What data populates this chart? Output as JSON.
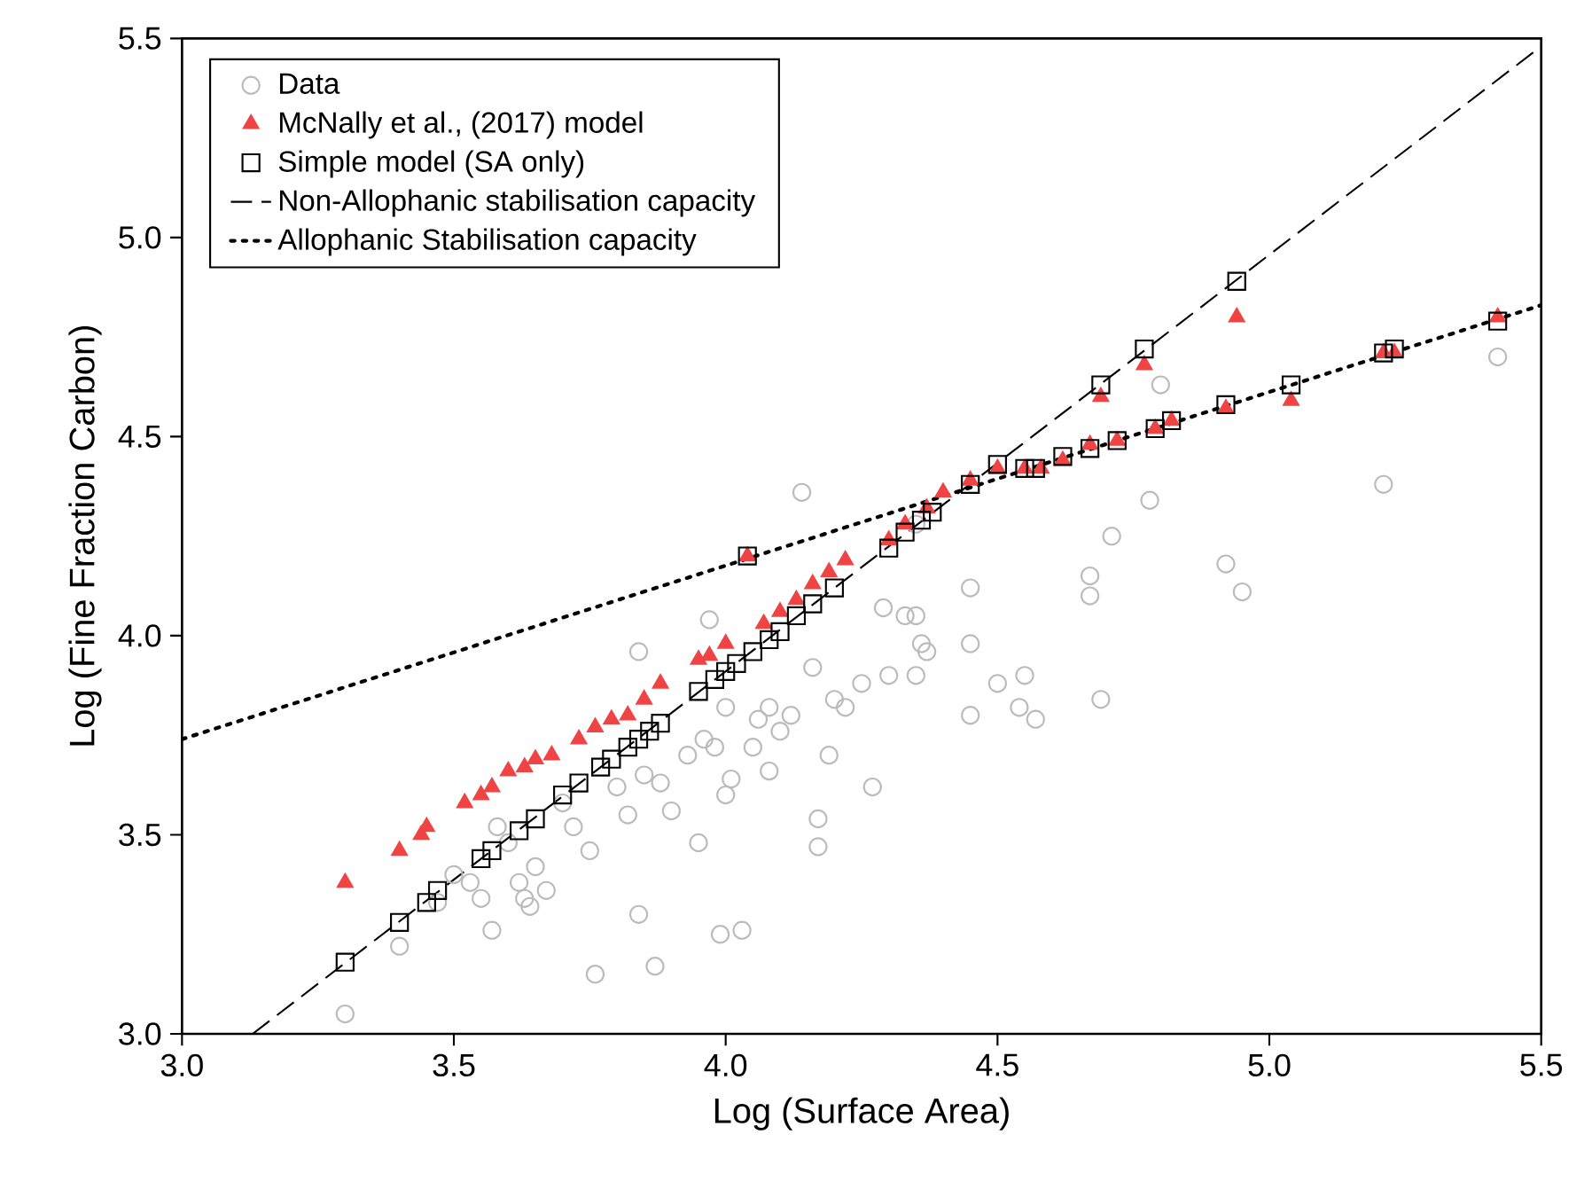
{
  "chart_data": {
    "type": "scatter",
    "xlabel": "Log (Surface Area)",
    "ylabel": "Log (Fine Fraction Carbon)",
    "xlim": [
      3.0,
      5.5
    ],
    "ylim": [
      3.0,
      5.5
    ],
    "xticks": [
      {
        "value": 3.0,
        "label": "3.0"
      },
      {
        "value": 3.5,
        "label": "3.5"
      },
      {
        "value": 4.0,
        "label": "4.0"
      },
      {
        "value": 4.5,
        "label": "4.5"
      },
      {
        "value": 5.0,
        "label": "5.0"
      },
      {
        "value": 5.5,
        "label": "5.5"
      }
    ],
    "yticks": [
      {
        "value": 3.0,
        "label": "3.0"
      },
      {
        "value": 3.5,
        "label": "3.5"
      },
      {
        "value": 4.0,
        "label": "4.0"
      },
      {
        "value": 4.5,
        "label": "4.5"
      },
      {
        "value": 5.0,
        "label": "5.0"
      },
      {
        "value": 5.5,
        "label": "5.5"
      }
    ],
    "legend": "top left",
    "grid": false,
    "series": [
      {
        "name": "Data",
        "marker": "circle",
        "color": "#bbbbbb",
        "x": [
          3.3,
          3.4,
          3.47,
          3.5,
          3.53,
          3.55,
          3.57,
          3.58,
          3.6,
          3.62,
          3.63,
          3.64,
          3.65,
          3.67,
          3.7,
          3.72,
          3.75,
          3.76,
          3.8,
          3.82,
          3.84,
          3.85,
          3.87,
          3.88,
          3.84,
          3.9,
          3.93,
          3.95,
          3.96,
          3.97,
          3.98,
          3.99,
          4.0,
          4.0,
          4.01,
          4.03,
          4.05,
          4.06,
          4.08,
          4.08,
          4.1,
          4.12,
          4.14,
          4.16,
          4.17,
          4.17,
          4.19,
          4.2,
          4.22,
          4.25,
          4.27,
          4.29,
          4.3,
          4.33,
          4.35,
          4.36,
          4.37,
          4.35,
          4.45,
          4.45,
          4.5,
          4.54,
          4.55,
          4.57,
          4.67,
          4.67,
          4.69,
          4.71,
          4.78,
          4.8,
          4.92,
          4.95,
          5.21,
          5.42,
          4.45,
          4.35
        ],
        "values": [
          3.05,
          3.22,
          3.33,
          3.4,
          3.38,
          3.34,
          3.26,
          3.52,
          3.48,
          3.38,
          3.34,
          3.32,
          3.42,
          3.36,
          3.58,
          3.52,
          3.46,
          3.15,
          3.62,
          3.55,
          3.3,
          3.65,
          3.17,
          3.63,
          3.96,
          3.56,
          3.7,
          3.48,
          3.74,
          4.04,
          3.72,
          3.25,
          3.6,
          3.82,
          3.64,
          3.26,
          3.72,
          3.79,
          3.66,
          3.82,
          3.76,
          3.8,
          4.36,
          3.92,
          3.54,
          3.47,
          3.7,
          3.84,
          3.82,
          3.88,
          3.62,
          4.07,
          3.9,
          4.05,
          4.05,
          3.98,
          3.96,
          3.9,
          3.8,
          3.98,
          3.88,
          3.82,
          3.9,
          3.79,
          4.15,
          4.1,
          3.84,
          4.25,
          4.34,
          4.63,
          4.18,
          4.11,
          4.38,
          4.7,
          4.12,
          4.28
        ]
      },
      {
        "name": "McNally et al., (2017) model",
        "marker": "triangle",
        "color": "#f04444",
        "x": [
          3.3,
          3.4,
          3.44,
          3.45,
          3.52,
          3.55,
          3.57,
          3.6,
          3.63,
          3.65,
          3.68,
          3.73,
          3.76,
          3.79,
          3.82,
          3.85,
          3.88,
          3.95,
          3.97,
          4.0,
          4.04,
          4.07,
          4.1,
          4.13,
          4.16,
          4.19,
          4.22,
          4.3,
          4.33,
          4.37,
          4.4,
          4.45,
          4.5,
          4.55,
          4.58,
          4.62,
          4.67,
          4.69,
          4.72,
          4.77,
          4.79,
          4.82,
          4.92,
          4.94,
          5.04,
          5.21,
          5.23,
          5.42
        ],
        "values": [
          3.38,
          3.46,
          3.5,
          3.52,
          3.58,
          3.6,
          3.62,
          3.66,
          3.67,
          3.69,
          3.7,
          3.74,
          3.77,
          3.79,
          3.8,
          3.84,
          3.88,
          3.94,
          3.95,
          3.98,
          4.2,
          4.03,
          4.06,
          4.09,
          4.13,
          4.16,
          4.19,
          4.24,
          4.28,
          4.32,
          4.36,
          4.39,
          4.42,
          4.42,
          4.42,
          4.44,
          4.48,
          4.6,
          4.49,
          4.68,
          4.52,
          4.54,
          4.57,
          4.8,
          4.59,
          4.71,
          4.71,
          4.8
        ]
      },
      {
        "name": "Simple model (SA only)",
        "marker": "square",
        "color": "#000000",
        "x": [
          3.3,
          3.4,
          3.45,
          3.47,
          3.55,
          3.57,
          3.62,
          3.65,
          3.7,
          3.73,
          3.77,
          3.79,
          3.82,
          3.84,
          3.86,
          3.88,
          3.95,
          3.98,
          4.0,
          4.02,
          4.05,
          4.08,
          4.1,
          4.13,
          4.16,
          4.2,
          4.3,
          4.33,
          4.36,
          4.38,
          4.45,
          4.5,
          4.55,
          4.04,
          4.69,
          4.77,
          4.94,
          4.57,
          4.62,
          4.67,
          4.72,
          4.79,
          4.82,
          4.92,
          5.04,
          5.21,
          5.23,
          5.42
        ],
        "values": [
          3.18,
          3.28,
          3.33,
          3.36,
          3.44,
          3.46,
          3.51,
          3.54,
          3.6,
          3.63,
          3.67,
          3.69,
          3.72,
          3.74,
          3.76,
          3.78,
          3.86,
          3.89,
          3.91,
          3.93,
          3.96,
          3.99,
          4.01,
          4.05,
          4.08,
          4.12,
          4.22,
          4.26,
          4.29,
          4.31,
          4.38,
          4.43,
          4.42,
          4.2,
          4.63,
          4.72,
          4.89,
          4.42,
          4.45,
          4.47,
          4.49,
          4.52,
          4.54,
          4.58,
          4.63,
          4.71,
          4.72,
          4.79
        ]
      },
      {
        "name": "Non-Allophanic stabilisation capacity",
        "type": "line",
        "line_style": "dashed",
        "marker": "none",
        "color": "#000000",
        "x": [
          3.13,
          5.5
        ],
        "values": [
          3.0,
          5.48
        ]
      },
      {
        "name": "Allophanic Stabilisation capacity",
        "type": "line",
        "line_style": "dotted",
        "marker": "none",
        "color": "#000000",
        "x": [
          3.0,
          5.5
        ],
        "values": [
          3.74,
          4.83
        ]
      }
    ]
  }
}
